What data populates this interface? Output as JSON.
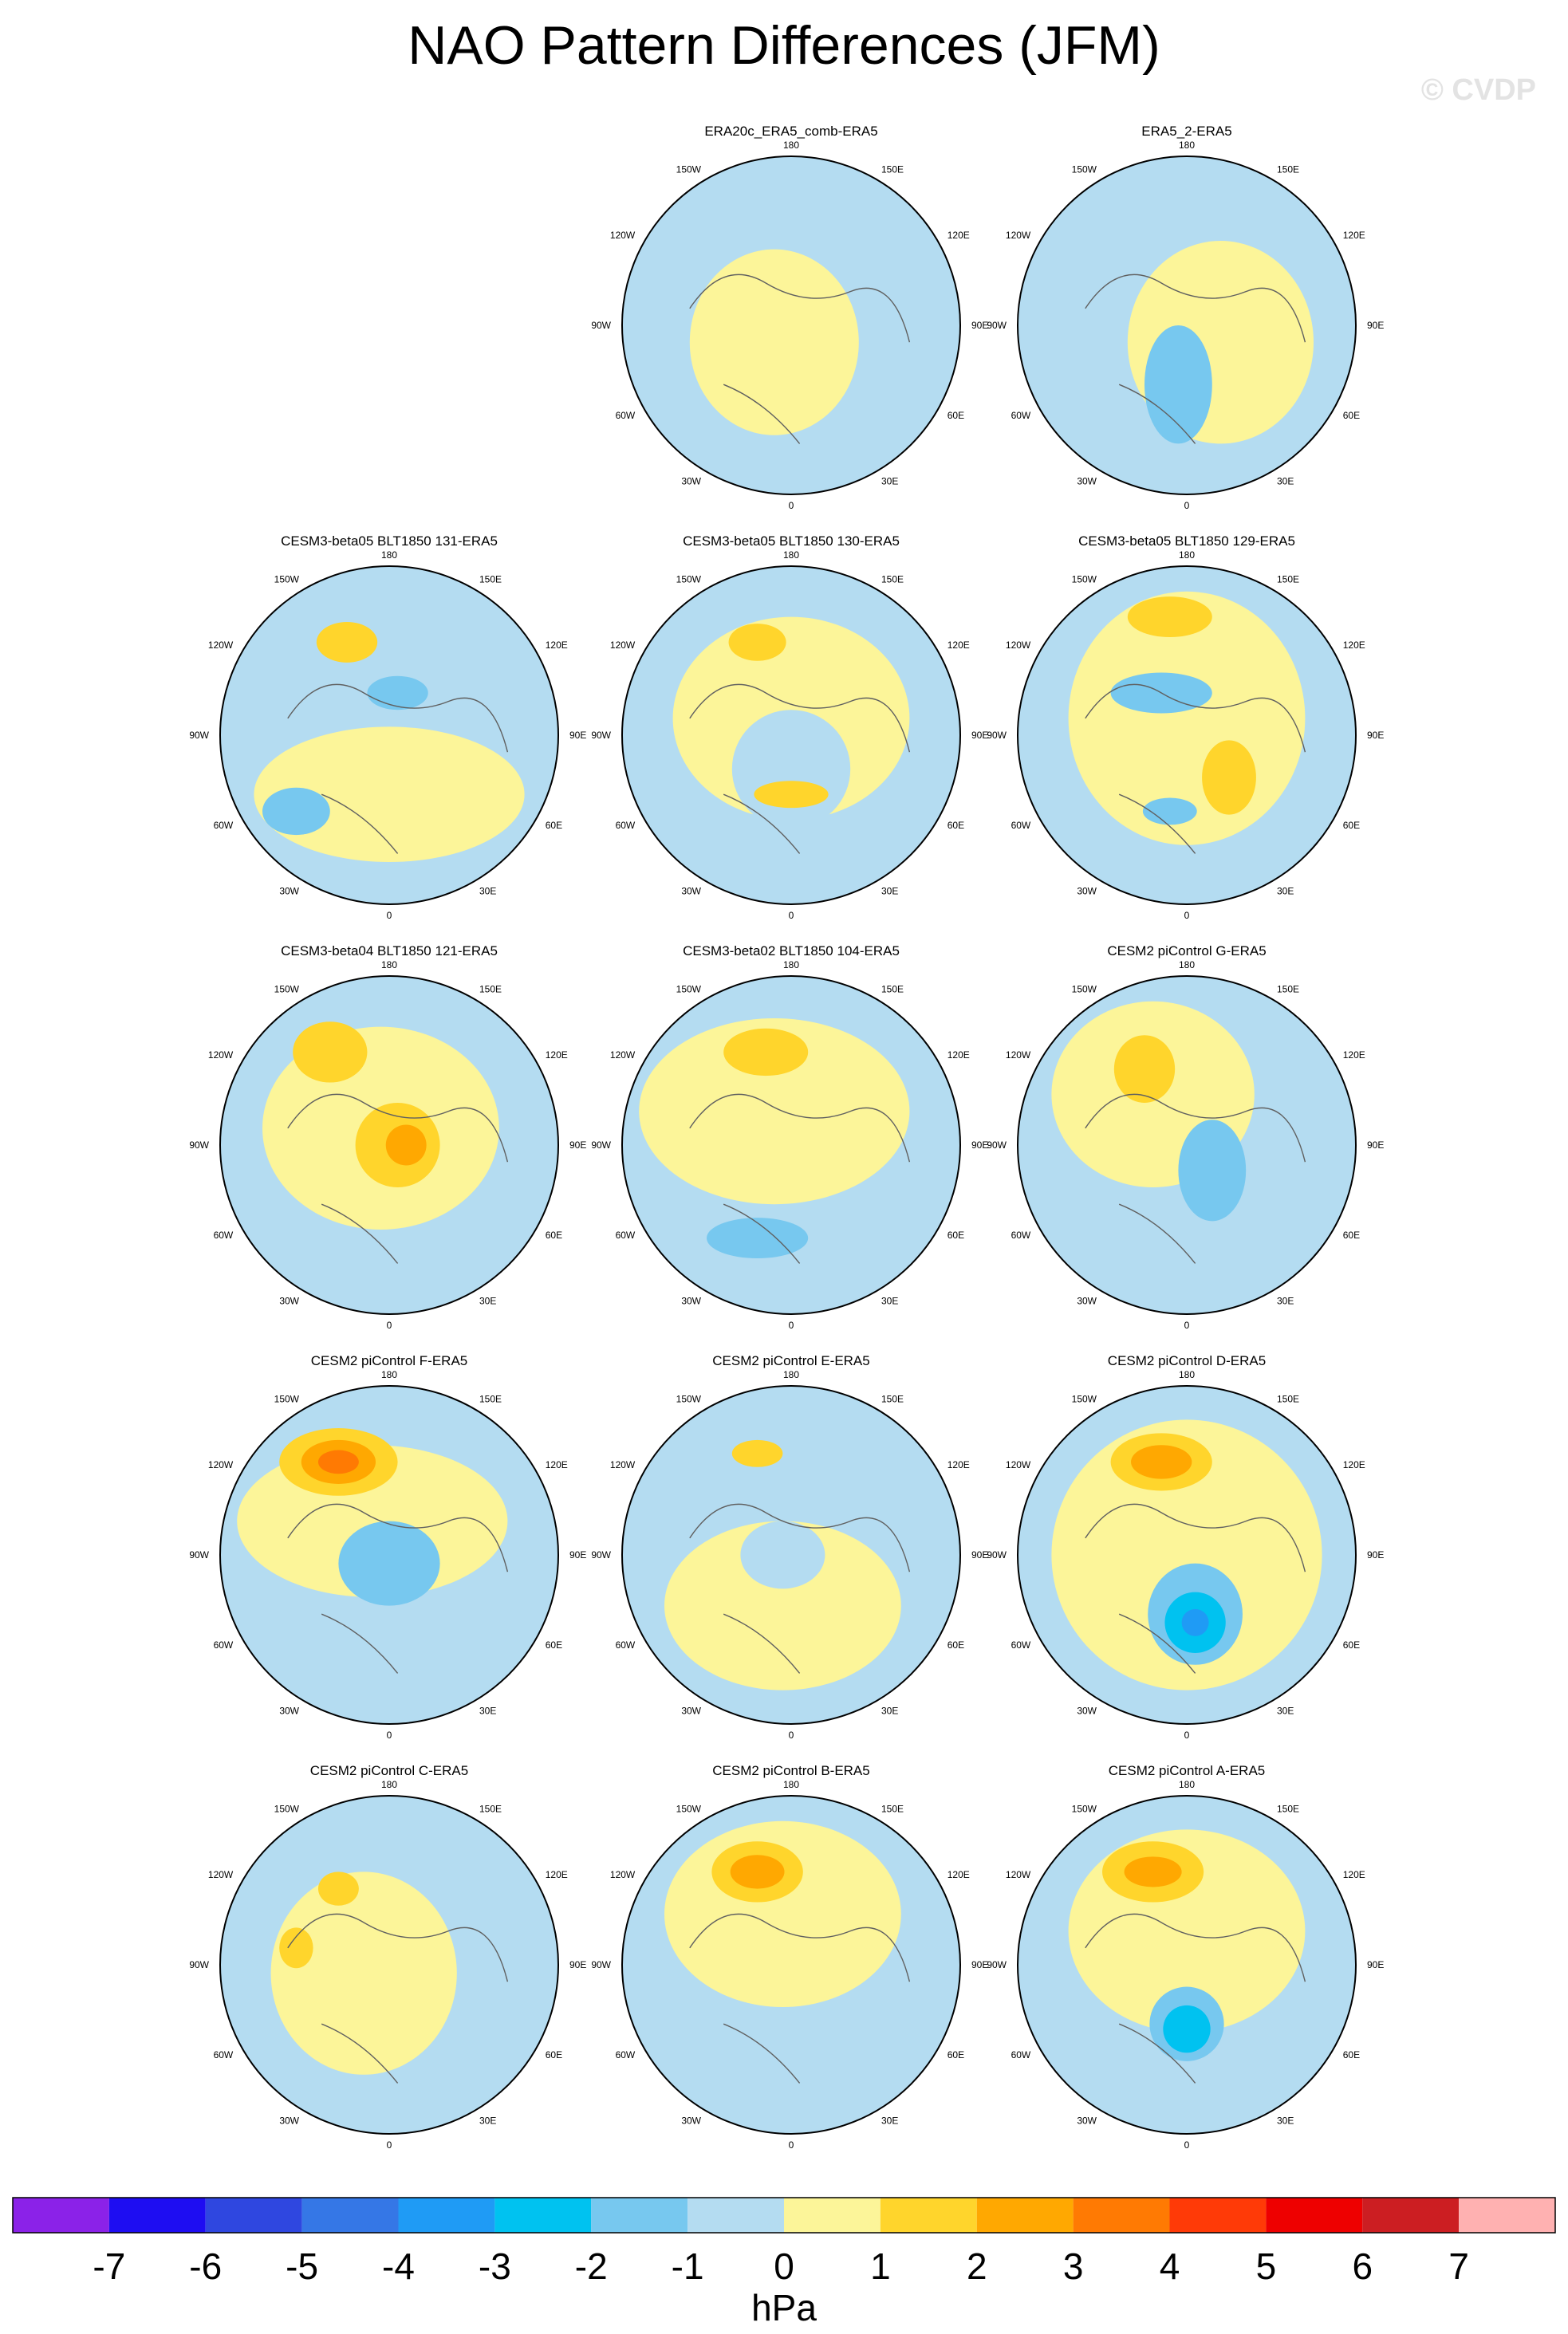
{
  "title": "NAO Pattern Differences (JFM)",
  "watermark": "© CVDP",
  "lon_labels": [
    "180",
    "150E",
    "120E",
    "90E",
    "60E",
    "30E",
    "0",
    "30W",
    "60W",
    "90W",
    "120W",
    "150W"
  ],
  "panels": [
    {
      "title": "",
      "empty": true
    },
    {
      "title": "ERA20c_ERA5_comb-ERA5"
    },
    {
      "title": "ERA5_2-ERA5"
    },
    {
      "title": "CESM3-beta05 BLT1850 131-ERA5"
    },
    {
      "title": "CESM3-beta05 BLT1850 130-ERA5"
    },
    {
      "title": "CESM3-beta05 BLT1850 129-ERA5"
    },
    {
      "title": "CESM3-beta04 BLT1850 121-ERA5"
    },
    {
      "title": "CESM3-beta02 BLT1850 104-ERA5"
    },
    {
      "title": "CESM2 piControl G-ERA5"
    },
    {
      "title": "CESM2 piControl F-ERA5"
    },
    {
      "title": "CESM2 piControl E-ERA5"
    },
    {
      "title": "CESM2 piControl D-ERA5"
    },
    {
      "title": "CESM2 piControl C-ERA5"
    },
    {
      "title": "CESM2 piControl B-ERA5"
    },
    {
      "title": "CESM2 piControl A-ERA5"
    }
  ],
  "colorbar": {
    "colors": [
      "#8b22e8",
      "#1e0df2",
      "#2f47e0",
      "#3577e6",
      "#1f9bf5",
      "#00c2f0",
      "#77c8ef",
      "#b4dcf1",
      "#fcf599",
      "#ffd52c",
      "#ffa801",
      "#ff7a03",
      "#ff3a07",
      "#ee0000",
      "#cc1e22",
      "#ffb1b1"
    ],
    "labels": [
      "-7",
      "-6",
      "-5",
      "-4",
      "-3",
      "-2",
      "-1",
      "0",
      "1",
      "2",
      "3",
      "4",
      "5",
      "6",
      "7"
    ],
    "unit": "hPa"
  }
}
